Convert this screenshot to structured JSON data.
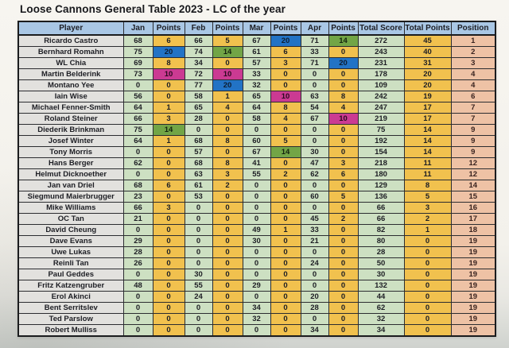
{
  "title": "Loose Cannons General Table 2023 - LC of the year",
  "colors": {
    "header_bg": "#a9c7e5",
    "player_bg": "#e2e1de",
    "score_bg": "#cde0c2",
    "points_bg": "#f1c14e",
    "position_bg": "#eec2a5",
    "highlight_blue": "#2273c5",
    "highlight_green": "#72a546",
    "highlight_magenta": "#cb3a92"
  },
  "table": {
    "columns": [
      "Player",
      "Jan",
      "Points",
      "Feb",
      "Points",
      "Mar",
      "Points",
      "Apr",
      "Points",
      "Total Score",
      "Total Points",
      "Position"
    ],
    "rows": [
      {
        "player": "Ricardo Castro",
        "values": [
          68,
          6,
          66,
          5,
          67,
          20,
          71,
          14,
          272,
          45,
          1
        ],
        "hl": {
          "5": "blue",
          "7": "green"
        }
      },
      {
        "player": "Bernhard Romahn",
        "values": [
          75,
          20,
          74,
          14,
          61,
          6,
          33,
          0,
          243,
          40,
          2
        ],
        "hl": {
          "1": "blue",
          "3": "green"
        }
      },
      {
        "player": "WL Chia",
        "values": [
          69,
          8,
          34,
          0,
          57,
          3,
          71,
          20,
          231,
          31,
          3
        ],
        "hl": {
          "7": "blue"
        }
      },
      {
        "player": "Martin Belderink",
        "values": [
          73,
          10,
          72,
          10,
          33,
          0,
          0,
          0,
          178,
          20,
          4
        ],
        "hl": {
          "1": "magenta",
          "3": "magenta"
        }
      },
      {
        "player": "Montano Yee",
        "values": [
          0,
          0,
          77,
          20,
          32,
          0,
          0,
          0,
          109,
          20,
          4
        ],
        "hl": {
          "3": "blue"
        }
      },
      {
        "player": "Iain Wise",
        "values": [
          56,
          0,
          58,
          1,
          65,
          10,
          63,
          8,
          242,
          19,
          6
        ],
        "hl": {
          "5": "magenta"
        }
      },
      {
        "player": "Michael Fenner-Smith",
        "values": [
          64,
          1,
          65,
          4,
          64,
          8,
          54,
          4,
          247,
          17,
          7
        ],
        "hl": {}
      },
      {
        "player": "Roland Steiner",
        "values": [
          66,
          3,
          28,
          0,
          58,
          4,
          67,
          10,
          219,
          17,
          7
        ],
        "hl": {
          "7": "magenta"
        }
      },
      {
        "player": "Diederik Brinkman",
        "values": [
          75,
          14,
          0,
          0,
          0,
          0,
          0,
          0,
          75,
          14,
          9
        ],
        "hl": {
          "1": "green"
        }
      },
      {
        "player": "Josef Winter",
        "values": [
          64,
          1,
          68,
          8,
          60,
          5,
          0,
          0,
          192,
          14,
          9
        ],
        "hl": {}
      },
      {
        "player": "Tony Morris",
        "values": [
          0,
          0,
          57,
          0,
          67,
          14,
          30,
          0,
          154,
          14,
          9
        ],
        "hl": {
          "5": "green"
        }
      },
      {
        "player": "Hans Berger",
        "values": [
          62,
          0,
          68,
          8,
          41,
          0,
          47,
          3,
          218,
          11,
          12
        ],
        "hl": {}
      },
      {
        "player": "Helmut Dicknoether",
        "values": [
          0,
          0,
          63,
          3,
          55,
          2,
          62,
          6,
          180,
          11,
          12
        ],
        "hl": {}
      },
      {
        "player": "Jan van Driel",
        "values": [
          68,
          6,
          61,
          2,
          0,
          0,
          0,
          0,
          129,
          8,
          14
        ],
        "hl": {}
      },
      {
        "player": "Siegmund Maierbrugger",
        "values": [
          23,
          0,
          53,
          0,
          0,
          0,
          60,
          5,
          136,
          5,
          15
        ],
        "hl": {}
      },
      {
        "player": "Mike Williams",
        "values": [
          66,
          3,
          0,
          0,
          0,
          0,
          0,
          0,
          66,
          3,
          16
        ],
        "hl": {}
      },
      {
        "player": "OC Tan",
        "values": [
          21,
          0,
          0,
          0,
          0,
          0,
          45,
          2,
          66,
          2,
          17
        ],
        "hl": {}
      },
      {
        "player": "David Cheung",
        "values": [
          0,
          0,
          0,
          0,
          49,
          1,
          33,
          0,
          82,
          1,
          18
        ],
        "hl": {}
      },
      {
        "player": "Dave Evans",
        "values": [
          29,
          0,
          0,
          0,
          30,
          0,
          21,
          0,
          80,
          0,
          19
        ],
        "hl": {}
      },
      {
        "player": "Uwe Lukas",
        "values": [
          28,
          0,
          0,
          0,
          0,
          0,
          0,
          0,
          28,
          0,
          19
        ],
        "hl": {}
      },
      {
        "player": "Reinli Tan",
        "values": [
          26,
          0,
          0,
          0,
          0,
          0,
          24,
          0,
          50,
          0,
          19
        ],
        "hl": {}
      },
      {
        "player": "Paul Geddes",
        "values": [
          0,
          0,
          30,
          0,
          0,
          0,
          0,
          0,
          30,
          0,
          19
        ],
        "hl": {}
      },
      {
        "player": "Fritz Katzengruber",
        "values": [
          48,
          0,
          55,
          0,
          29,
          0,
          0,
          0,
          132,
          0,
          19
        ],
        "hl": {}
      },
      {
        "player": "Erol Akinci",
        "values": [
          0,
          0,
          24,
          0,
          0,
          0,
          20,
          0,
          44,
          0,
          19
        ],
        "hl": {}
      },
      {
        "player": "Bent Serritslev",
        "values": [
          0,
          0,
          0,
          0,
          34,
          0,
          28,
          0,
          62,
          0,
          19
        ],
        "hl": {}
      },
      {
        "player": "Ted Parslow",
        "values": [
          0,
          0,
          0,
          0,
          32,
          0,
          0,
          0,
          32,
          0,
          19
        ],
        "hl": {}
      },
      {
        "player": "Robert Mulliss",
        "values": [
          0,
          0,
          0,
          0,
          0,
          0,
          34,
          0,
          34,
          0,
          19
        ],
        "hl": {}
      }
    ]
  }
}
